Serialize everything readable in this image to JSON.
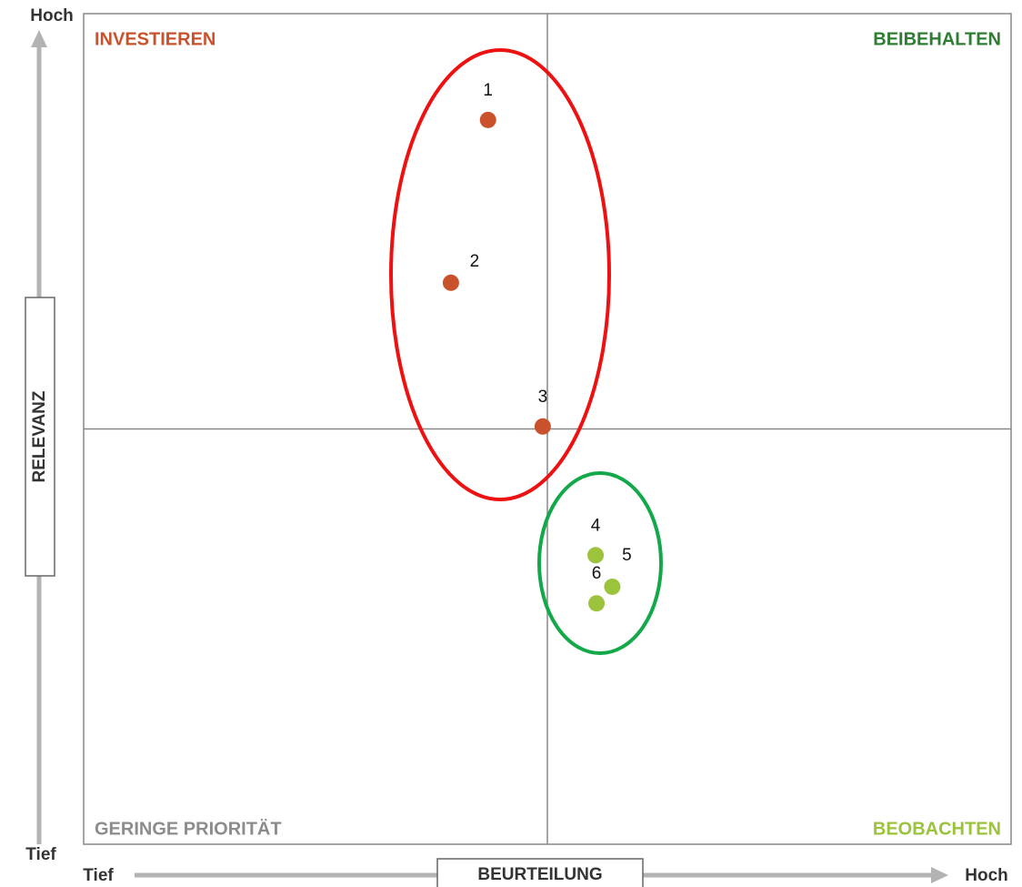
{
  "chart_data": {
    "type": "scatter",
    "x_axis_label": "BEURTEILUNG",
    "y_axis_label": "RELEVANZ",
    "x_low_label": "Tief",
    "x_high_label": "Hoch",
    "y_low_label": "Tief",
    "y_high_label": "Hoch",
    "quadrants": {
      "top_left": "INVESTIEREN",
      "top_right": "BEIBEHALTEN",
      "bottom_left": "GERINGE PRIORITÄT",
      "bottom_right": "BEOBACHTEN"
    },
    "quadrant_colors": {
      "top_left": "#c9512b",
      "top_right": "#2e7d32",
      "bottom_left": "#8c8c8c",
      "bottom_right": "#9bc33b"
    },
    "labels": [
      "1",
      "2",
      "3",
      "4",
      "5",
      "6"
    ],
    "x": [
      43.6,
      39.6,
      49.5,
      55.2,
      57.0,
      55.3
    ],
    "y": [
      87.2,
      67.6,
      50.3,
      34.8,
      31.0,
      29.0
    ],
    "colors": [
      "#c9512b",
      "#c9512b",
      "#c9512b",
      "#9bc33b",
      "#9bc33b",
      "#9bc33b"
    ],
    "xlim": [
      0,
      100
    ],
    "ylim": [
      0,
      100
    ]
  }
}
